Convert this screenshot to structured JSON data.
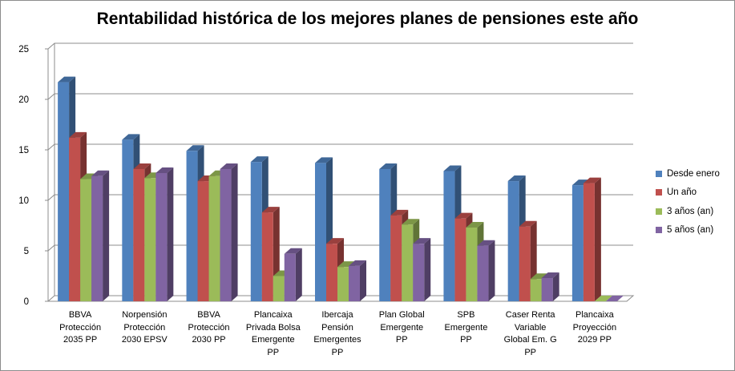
{
  "chart_data": {
    "type": "bar",
    "title": "Rentabilidad histórica de los mejores planes de pensiones este año",
    "xlabel": "",
    "ylabel": "",
    "ylim": [
      0,
      25
    ],
    "yticks": [
      0,
      5,
      10,
      15,
      20,
      25
    ],
    "grid": true,
    "legend_position": "right",
    "categories": [
      "BBVA\nProtección\n2035 PP",
      "Norpensión\nProtección\n2030 EPSV",
      "BBVA\nProtección\n2030 PP",
      "Plancaixa\nPrivada Bolsa\nEmergente\nPP",
      "Ibercaja\nPensión\nEmergentes\nPP",
      "Plan Global\nEmergente\nPP",
      "SPB\nEmergente\nPP",
      "Caser Renta\nVariable\nGlobal Em. G\nPP",
      "Plancaixa\nProyección\n2029 PP"
    ],
    "series": [
      {
        "name": "Desde enero",
        "color": "#4f81bd",
        "values": [
          21.7,
          16.0,
          14.9,
          13.8,
          13.7,
          13.1,
          12.9,
          11.9,
          11.5
        ]
      },
      {
        "name": "Un año",
        "color": "#c0504d",
        "values": [
          16.2,
          13.1,
          11.9,
          8.8,
          5.7,
          8.5,
          8.2,
          7.4,
          11.7
        ]
      },
      {
        "name": "3 años (an)",
        "color": "#9bbb59",
        "values": [
          12.1,
          12.2,
          12.4,
          2.5,
          3.4,
          7.6,
          7.3,
          2.2,
          0.0
        ]
      },
      {
        "name": "5 años (an)",
        "color": "#8064a2",
        "values": [
          12.4,
          12.7,
          13.1,
          4.7,
          3.5,
          5.7,
          5.5,
          2.3,
          0.0
        ]
      }
    ]
  }
}
